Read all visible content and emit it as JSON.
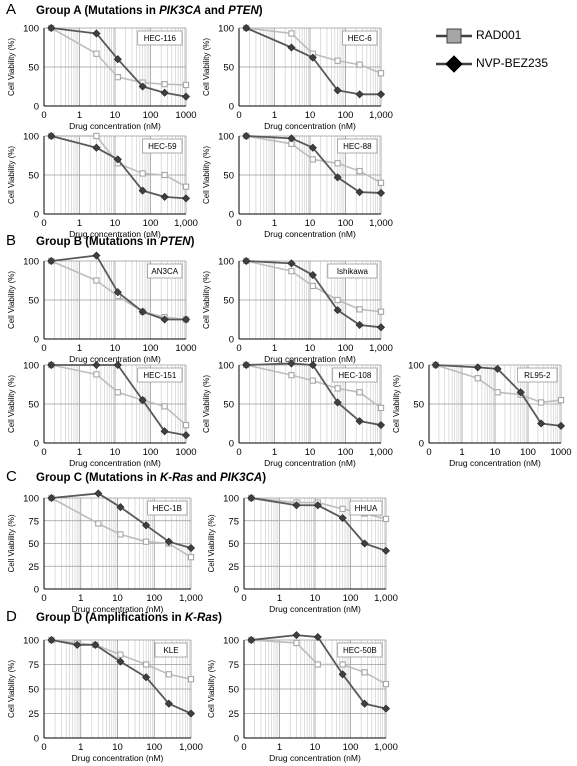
{
  "groups": {
    "A": {
      "letter": "A",
      "pre": "Group  A (Mutations in ",
      "g1": "PIK3CA",
      "mid": " and ",
      "g2": "PTEN",
      "post": ")"
    },
    "B": {
      "letter": "B",
      "pre": "Group  B (Mutations in ",
      "g1": "PTEN",
      "mid": "",
      "g2": "",
      "post": ")"
    },
    "C": {
      "letter": "C",
      "pre": "Group  C (Mutations in ",
      "g1": "K-Ras",
      "mid": " and ",
      "g2": "PIK3CA",
      "post": ")"
    },
    "D": {
      "letter": "D",
      "pre": "Group  D (Amplifications in ",
      "g1": "K-Ras",
      "mid": "",
      "g2": "",
      "post": ")"
    }
  },
  "legend": {
    "rad001": "RAD001",
    "bez": "NVP-BEZ235"
  },
  "colors": {
    "rad001_line": "#bdbdbd",
    "rad001_marker": "#a6a6a6",
    "bez_line": "#595959",
    "bez_marker": "#404040",
    "grid": "#c8c8c8"
  },
  "chart_data": [
    {
      "type": "line",
      "title": "HEC-116",
      "group": "A",
      "xlabel": "Drug concentration (nM)",
      "ylabel": "Cell Viability (%)",
      "xscale": "log",
      "xlim": [
        0,
        1000
      ],
      "ylim": [
        0,
        100
      ],
      "yticks": [
        0,
        50,
        100
      ],
      "xticks": [
        0,
        1,
        10,
        100,
        1000
      ],
      "xticklabels": [
        "0",
        "1",
        "10",
        "100",
        "1000"
      ],
      "x": [
        0.16,
        3,
        12,
        60,
        250,
        1000
      ],
      "series": [
        {
          "name": "RAD001",
          "values": [
            100,
            67,
            37,
            30,
            28,
            27
          ]
        },
        {
          "name": "NVP-BEZ235",
          "values": [
            100,
            93,
            60,
            25,
            17,
            12
          ]
        }
      ]
    },
    {
      "type": "line",
      "title": "HEC-6",
      "group": "A",
      "xlabel": "Drug concentration (nM)",
      "ylabel": "Cell Viability (%)",
      "xscale": "log",
      "xlim": [
        0,
        1000
      ],
      "ylim": [
        0,
        100
      ],
      "yticks": [
        0,
        50,
        100
      ],
      "xticks": [
        0,
        1,
        10,
        100,
        1000
      ],
      "xticklabels": [
        "0",
        "1",
        "10",
        "100",
        "1,000"
      ],
      "x": [
        0.16,
        3,
        12,
        60,
        250,
        1000
      ],
      "series": [
        {
          "name": "RAD001",
          "values": [
            100,
            93,
            67,
            58,
            53,
            42
          ]
        },
        {
          "name": "NVP-BEZ235",
          "values": [
            100,
            75,
            62,
            20,
            15,
            15
          ]
        }
      ]
    },
    {
      "type": "line",
      "title": "HEC-59",
      "group": "A",
      "xlabel": "Drug concentration (nM)",
      "ylabel": "Cell Viability (%)",
      "xscale": "log",
      "xlim": [
        0,
        1000
      ],
      "ylim": [
        0,
        100
      ],
      "yticks": [
        0,
        50,
        100
      ],
      "xticks": [
        0,
        1,
        10,
        100,
        1000
      ],
      "xticklabels": [
        "0",
        "1",
        "10",
        "100",
        "1,000"
      ],
      "x": [
        0.16,
        3,
        12,
        60,
        250,
        1000
      ],
      "series": [
        {
          "name": "RAD001",
          "values": [
            100,
            100,
            65,
            52,
            50,
            35
          ]
        },
        {
          "name": "NVP-BEZ235",
          "values": [
            100,
            85,
            70,
            30,
            22,
            20
          ]
        }
      ]
    },
    {
      "type": "line",
      "title": "HEC-88",
      "group": "A",
      "xlabel": "Drug concentration (nM)",
      "ylabel": "Cell Viability (%)",
      "xscale": "log",
      "xlim": [
        0,
        1000
      ],
      "ylim": [
        0,
        100
      ],
      "yticks": [
        0,
        50,
        100
      ],
      "xticks": [
        0,
        1,
        10,
        100,
        1000
      ],
      "xticklabels": [
        "0",
        "1",
        "10",
        "100",
        "1,000"
      ],
      "x": [
        0.16,
        3,
        12,
        60,
        250,
        1000
      ],
      "series": [
        {
          "name": "RAD001",
          "values": [
            100,
            90,
            70,
            65,
            55,
            40
          ]
        },
        {
          "name": "NVP-BEZ235",
          "values": [
            100,
            97,
            85,
            47,
            28,
            27
          ]
        }
      ]
    },
    {
      "type": "line",
      "title": "AN3CA",
      "group": "B",
      "xlabel": "Drug concentration (nM)",
      "ylabel": "Cell Viability (%)",
      "xscale": "log",
      "xlim": [
        0,
        1000
      ],
      "ylim": [
        0,
        100
      ],
      "yticks": [
        0,
        50,
        100
      ],
      "xticks": [
        0,
        1,
        10,
        100,
        1000
      ],
      "xticklabels": [
        "0",
        "1",
        "10",
        "100",
        "1000"
      ],
      "x": [
        0.16,
        3,
        12,
        60,
        250,
        1000
      ],
      "series": [
        {
          "name": "RAD001",
          "values": [
            100,
            75,
            55,
            35,
            28,
            25
          ]
        },
        {
          "name": "NVP-BEZ235",
          "values": [
            100,
            107,
            60,
            35,
            25,
            25
          ]
        }
      ]
    },
    {
      "type": "line",
      "title": "Ishikawa",
      "group": "B",
      "xlabel": "Drug concentration (nM)",
      "ylabel": "Cell Viability (%)",
      "xscale": "log",
      "xlim": [
        0,
        1000
      ],
      "ylim": [
        0,
        100
      ],
      "yticks": [
        0,
        50,
        100
      ],
      "xticks": [
        0,
        1,
        10,
        100,
        1000
      ],
      "xticklabels": [
        "0",
        "1",
        "10",
        "100",
        "1,000"
      ],
      "x": [
        0.16,
        3,
        12,
        60,
        250,
        1000
      ],
      "series": [
        {
          "name": "RAD001",
          "values": [
            100,
            87,
            68,
            50,
            38,
            35
          ]
        },
        {
          "name": "NVP-BEZ235",
          "values": [
            100,
            97,
            82,
            37,
            18,
            15
          ]
        }
      ]
    },
    {
      "type": "line",
      "title": "HEC-151",
      "group": "B",
      "xlabel": "Drug concentration (nM)",
      "ylabel": "Cell Viability (%)",
      "xscale": "log",
      "xlim": [
        0,
        1000
      ],
      "ylim": [
        0,
        100
      ],
      "yticks": [
        0,
        50,
        100
      ],
      "xticks": [
        0,
        1,
        10,
        100,
        1000
      ],
      "xticklabels": [
        "0",
        "1",
        "10",
        "100",
        "1000"
      ],
      "x": [
        0.16,
        3,
        12,
        60,
        250,
        1000
      ],
      "series": [
        {
          "name": "RAD001",
          "values": [
            100,
            88,
            65,
            55,
            47,
            23
          ]
        },
        {
          "name": "NVP-BEZ235",
          "values": [
            100,
            100,
            100,
            55,
            15,
            10
          ]
        }
      ]
    },
    {
      "type": "line",
      "title": "HEC-108",
      "group": "B",
      "xlabel": "Drug concentration (nM)",
      "ylabel": "Cell Viability (%)",
      "xscale": "log",
      "xlim": [
        0,
        1000
      ],
      "ylim": [
        0,
        100
      ],
      "yticks": [
        0,
        50,
        100
      ],
      "xticks": [
        0,
        1,
        10,
        100,
        1000
      ],
      "xticklabels": [
        "0",
        "1",
        "10",
        "100",
        "1,000"
      ],
      "x": [
        0.16,
        3,
        12,
        60,
        250,
        1000
      ],
      "series": [
        {
          "name": "RAD001",
          "values": [
            100,
            87,
            80,
            70,
            65,
            45
          ]
        },
        {
          "name": "NVP-BEZ235",
          "values": [
            100,
            102,
            100,
            52,
            28,
            23
          ]
        }
      ]
    },
    {
      "type": "line",
      "title": "RL95-2",
      "group": "B",
      "xlabel": "Drug concentration (nM)",
      "ylabel": "Cell Viability (%)",
      "xscale": "log",
      "xlim": [
        0,
        1000
      ],
      "ylim": [
        0,
        100
      ],
      "yticks": [
        0,
        50,
        100
      ],
      "xticks": [
        0,
        1,
        10,
        100,
        1000
      ],
      "xticklabels": [
        "0",
        "1",
        "10",
        "100",
        "1000"
      ],
      "x": [
        0.16,
        3,
        12,
        60,
        250,
        1000
      ],
      "series": [
        {
          "name": "RAD001",
          "values": [
            100,
            83,
            65,
            62,
            52,
            55
          ]
        },
        {
          "name": "NVP-BEZ235",
          "values": [
            100,
            97,
            95,
            65,
            25,
            22
          ]
        }
      ]
    },
    {
      "type": "line",
      "title": "HEC-1B",
      "group": "C",
      "xlabel": "Drug concentration (nM)",
      "ylabel": "Cell Viability (%)",
      "xscale": "log",
      "xlim": [
        0,
        1000
      ],
      "ylim": [
        0,
        100
      ],
      "yticks": [
        0,
        25,
        50,
        75,
        100
      ],
      "xticks": [
        0,
        1,
        10,
        100,
        1000
      ],
      "xticklabels": [
        "0",
        "1",
        "10",
        "100",
        "1,000"
      ],
      "x": [
        0.16,
        3,
        12,
        60,
        250,
        1000
      ],
      "series": [
        {
          "name": "RAD001",
          "values": [
            100,
            72,
            60,
            52,
            50,
            35
          ]
        },
        {
          "name": "NVP-BEZ235",
          "values": [
            100,
            105,
            90,
            70,
            52,
            45
          ]
        }
      ]
    },
    {
      "type": "line",
      "title": "HHUA",
      "group": "C",
      "xlabel": "Drug concentration (nM)",
      "ylabel": "Cell Viability (%)",
      "xscale": "log",
      "xlim": [
        0,
        1000
      ],
      "ylim": [
        0,
        100
      ],
      "yticks": [
        0,
        25,
        50,
        75,
        100
      ],
      "xticks": [
        0,
        1,
        10,
        100,
        1000
      ],
      "xticklabels": [
        "0",
        "1",
        "10",
        "100",
        "1,000"
      ],
      "x": [
        0.16,
        3,
        12,
        60,
        250,
        1000
      ],
      "series": [
        {
          "name": "RAD001",
          "values": [
            100,
            95,
            95,
            88,
            83,
            77
          ]
        },
        {
          "name": "NVP-BEZ235",
          "values": [
            100,
            92,
            92,
            78,
            50,
            42
          ]
        }
      ]
    },
    {
      "type": "line",
      "title": "KLE",
      "group": "D",
      "xlabel": "Drug concentration (nM)",
      "ylabel": "Cell Viability (%)",
      "xscale": "log",
      "xlim": [
        0,
        1000
      ],
      "ylim": [
        0,
        100
      ],
      "yticks": [
        0,
        25,
        50,
        75,
        100
      ],
      "xticks": [
        0,
        1,
        10,
        100,
        1000
      ],
      "xticklabels": [
        "0",
        "1",
        "10",
        "100",
        "1,000"
      ],
      "x": [
        0.16,
        0.8,
        2.5,
        12,
        60,
        250,
        1000
      ],
      "series": [
        {
          "name": "RAD001",
          "values": [
            100,
            97,
            95,
            85,
            75,
            65,
            60
          ]
        },
        {
          "name": "NVP-BEZ235",
          "values": [
            100,
            95,
            95,
            78,
            62,
            35,
            25
          ]
        }
      ]
    },
    {
      "type": "line",
      "title": "HEC-50B",
      "group": "D",
      "xlabel": "Drug concentration (nM)",
      "ylabel": "Cell Viability (%)",
      "xscale": "log",
      "xlim": [
        0,
        1000
      ],
      "ylim": [
        0,
        100
      ],
      "yticks": [
        0,
        25,
        50,
        75,
        100
      ],
      "xticks": [
        0,
        1,
        10,
        100,
        1000
      ],
      "xticklabels": [
        "0",
        "1",
        "10",
        "100",
        "1,000"
      ],
      "x": [
        0.16,
        3,
        12,
        60,
        250,
        1000
      ],
      "series": [
        {
          "name": "RAD001",
          "values": [
            100,
            97,
            75,
            75,
            67,
            55
          ]
        },
        {
          "name": "NVP-BEZ235",
          "values": [
            100,
            105,
            103,
            65,
            35,
            30
          ]
        }
      ]
    }
  ]
}
